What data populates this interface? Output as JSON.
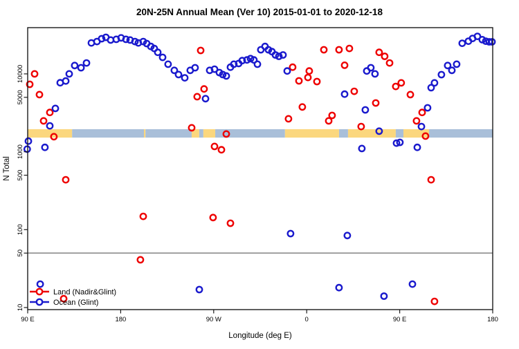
{
  "title": "20N-25N Annual Mean (Ver 10)   2015-01-01 to 2020-12-18",
  "legend": [
    {
      "label": "Land (Nadir&Glint)",
      "color": "#ee0000",
      "symbol": "open-circle-on-line"
    },
    {
      "label": "Ocean (Glint)",
      "color": "#1a1acd",
      "symbol": "open-circle-on-line"
    }
  ],
  "colors": {
    "land_series": "#ee0000",
    "ocean_series": "#1a1acd",
    "band_land": "#fbd77e",
    "band_ocean": "#a9bfd9",
    "reference_line": "#8c8c8c",
    "plot_border": "#1a1a1a"
  },
  "surface_band": {
    "description": "land/ocean surface-type band drawn across the plot",
    "v_min": 1520,
    "v_max": 1950,
    "segments": [
      {
        "from": 90,
        "to": 133,
        "surface": "land"
      },
      {
        "from": 133,
        "to": 202.5,
        "surface": "ocean"
      },
      {
        "from": 202.5,
        "to": 204,
        "surface": "land"
      },
      {
        "from": 204,
        "to": 248.7,
        "surface": "ocean"
      },
      {
        "from": 248.7,
        "to": 256,
        "surface": "land"
      },
      {
        "from": 256,
        "to": 260,
        "surface": "ocean"
      },
      {
        "from": 260,
        "to": 271.5,
        "surface": "land"
      },
      {
        "from": 271.5,
        "to": 339,
        "surface": "ocean"
      },
      {
        "from": 339,
        "to": 391.3,
        "surface": "land"
      },
      {
        "from": 391.3,
        "to": 400,
        "surface": "ocean"
      },
      {
        "from": 400,
        "to": 446.2,
        "surface": "land"
      },
      {
        "from": 446.2,
        "to": 453.6,
        "surface": "ocean"
      },
      {
        "from": 453.6,
        "to": 478.4,
        "surface": "land"
      },
      {
        "from": 478.4,
        "to": 540,
        "surface": "ocean"
      }
    ]
  },
  "chart_data": {
    "type": "scatter",
    "title": "20N-25N Annual Mean (Ver 10)   2015-01-01 to 2020-12-18",
    "xlabel": "Longitude (deg E)",
    "ylabel": "N Total",
    "y_scale": "log",
    "ylim": [
      10,
      40000
    ],
    "x_axis_span_deg": [
      90,
      540
    ],
    "x_ticks": [
      {
        "axis_lon": 90,
        "label": "90 E"
      },
      {
        "axis_lon": 180,
        "label": "180"
      },
      {
        "axis_lon": 270,
        "label": "90 W"
      },
      {
        "axis_lon": 360,
        "label": "0"
      },
      {
        "axis_lon": 450,
        "label": "90 E"
      },
      {
        "axis_lon": 540,
        "label": "180"
      }
    ],
    "y_ticks": [
      {
        "value": 10,
        "label": "10"
      },
      {
        "value": 50,
        "label": "50"
      },
      {
        "value": 100,
        "label": "100"
      },
      {
        "value": 500,
        "label": "500"
      },
      {
        "value": 1000,
        "label": "1000"
      },
      {
        "value": 5000,
        "label": "5000"
      },
      {
        "value": 10000,
        "label": "10000"
      }
    ],
    "reference_line": {
      "value": 50
    },
    "grid": false,
    "legend_position": "bottom-left",
    "series": [
      {
        "name": "Land (Nadir&Glint)",
        "color": "#ee0000",
        "points": [
          [
            96.7,
            10000
          ],
          [
            92.0,
            7350
          ],
          [
            101.4,
            5420
          ],
          [
            111.4,
            3200
          ],
          [
            105.4,
            2490
          ],
          [
            115.4,
            1560
          ],
          [
            126.8,
            437
          ],
          [
            124.8,
            13
          ],
          [
            201.8,
            148
          ],
          [
            199.1,
            41
          ],
          [
            248.7,
            2030
          ],
          [
            254.0,
            5100
          ],
          [
            260.7,
            6400
          ],
          [
            257.4,
            20000
          ],
          [
            270.8,
            1170
          ],
          [
            277.5,
            1060
          ],
          [
            282.2,
            1690
          ],
          [
            269.4,
            143
          ],
          [
            286.2,
            121
          ],
          [
            342.4,
            2650
          ],
          [
            346.4,
            12200
          ],
          [
            352.5,
            8130
          ],
          [
            361.2,
            9000
          ],
          [
            362.5,
            10900
          ],
          [
            369.9,
            7970
          ],
          [
            355.8,
            3760
          ],
          [
            376.6,
            20400
          ],
          [
            391.3,
            20400
          ],
          [
            401.3,
            21200
          ],
          [
            381.3,
            2490
          ],
          [
            384.6,
            2930
          ],
          [
            396.7,
            12900
          ],
          [
            406.0,
            5970
          ],
          [
            412.7,
            2110
          ],
          [
            426.8,
            4230
          ],
          [
            430.1,
            18900
          ],
          [
            435.5,
            16800
          ],
          [
            440.2,
            13800
          ],
          [
            446.2,
            6900
          ],
          [
            451.5,
            7660
          ],
          [
            460.3,
            5420
          ],
          [
            466.3,
            2490
          ],
          [
            471.7,
            3200
          ],
          [
            475.0,
            1590
          ],
          [
            480.4,
            437
          ],
          [
            483.7,
            12
          ]
        ]
      },
      {
        "name": "Ocean (Glint)",
        "color": "#1a1acd",
        "points": [
          [
            90.7,
            1370
          ],
          [
            89.5,
            1080
          ],
          [
            106.7,
            1140
          ],
          [
            102.1,
            20
          ],
          [
            111.4,
            2150
          ],
          [
            116.8,
            3600
          ],
          [
            121.5,
            7700
          ],
          [
            126.8,
            8100
          ],
          [
            130.2,
            10000
          ],
          [
            135.5,
            12800
          ],
          [
            141.6,
            12000
          ],
          [
            146.9,
            13800
          ],
          [
            151.6,
            25000
          ],
          [
            157.0,
            26000
          ],
          [
            161.6,
            28300
          ],
          [
            165.7,
            29500
          ],
          [
            170.3,
            27200
          ],
          [
            175.7,
            27800
          ],
          [
            180.4,
            29000
          ],
          [
            185.1,
            27800
          ],
          [
            189.1,
            27200
          ],
          [
            193.8,
            26000
          ],
          [
            197.1,
            25000
          ],
          [
            201.8,
            26000
          ],
          [
            205.2,
            24500
          ],
          [
            209.2,
            22500
          ],
          [
            212.5,
            21200
          ],
          [
            215.9,
            18900
          ],
          [
            220.6,
            16300
          ],
          [
            225.9,
            13300
          ],
          [
            231.9,
            11100
          ],
          [
            236.0,
            9800
          ],
          [
            242.0,
            8900
          ],
          [
            247.3,
            11100
          ],
          [
            252.0,
            12000
          ],
          [
            262.1,
            4800
          ],
          [
            266.1,
            11100
          ],
          [
            270.8,
            11500
          ],
          [
            275.5,
            10400
          ],
          [
            278.8,
            9800
          ],
          [
            282.2,
            9400
          ],
          [
            286.2,
            12200
          ],
          [
            289.5,
            13300
          ],
          [
            294.2,
            13600
          ],
          [
            297.6,
            14800
          ],
          [
            302.2,
            15100
          ],
          [
            305.6,
            15700
          ],
          [
            308.9,
            15100
          ],
          [
            312.3,
            13300
          ],
          [
            315.6,
            20400
          ],
          [
            319.7,
            22500
          ],
          [
            323.0,
            20400
          ],
          [
            326.4,
            19300
          ],
          [
            329.7,
            17500
          ],
          [
            333.1,
            16800
          ],
          [
            337.1,
            17500
          ],
          [
            341.1,
            10900
          ],
          [
            344.4,
            89
          ],
          [
            256.1,
            17
          ],
          [
            391.3,
            18
          ],
          [
            396.7,
            5500
          ],
          [
            399.3,
            84
          ],
          [
            413.4,
            1100
          ],
          [
            416.7,
            3450
          ],
          [
            418.1,
            10900
          ],
          [
            422.1,
            12000
          ],
          [
            426.1,
            10000
          ],
          [
            430.1,
            1840
          ],
          [
            434.8,
            14
          ],
          [
            446.9,
            1290
          ],
          [
            450.2,
            1320
          ],
          [
            462.3,
            20
          ],
          [
            467.0,
            1140
          ],
          [
            471.0,
            2110
          ],
          [
            477.0,
            3670
          ],
          [
            480.4,
            6640
          ],
          [
            483.7,
            7660
          ],
          [
            490.4,
            9770
          ],
          [
            496.4,
            12800
          ],
          [
            500.5,
            11100
          ],
          [
            505.1,
            13300
          ],
          [
            510.5,
            24700
          ],
          [
            516.5,
            26300
          ],
          [
            520.5,
            28500
          ],
          [
            525.2,
            30300
          ],
          [
            529.9,
            27500
          ],
          [
            533.3,
            26300
          ],
          [
            536.6,
            25800
          ],
          [
            539.3,
            25800
          ]
        ]
      }
    ]
  }
}
